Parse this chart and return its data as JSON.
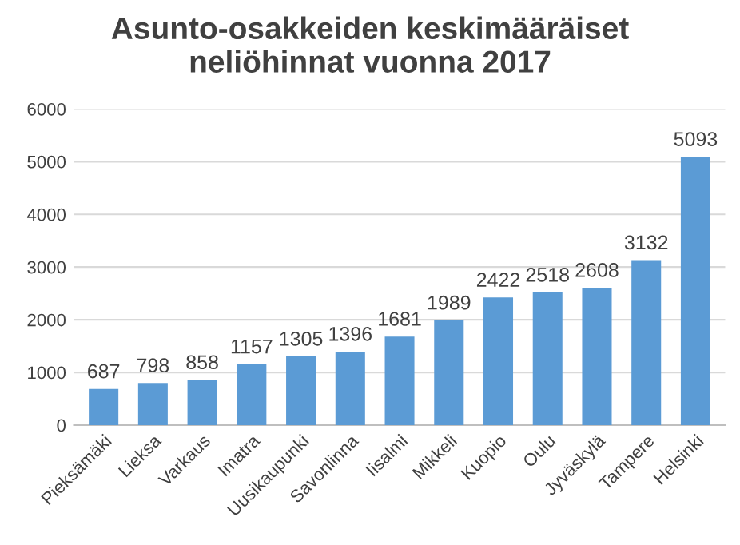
{
  "chart_data": {
    "type": "bar",
    "title": "Asunto-osakkeiden keskimääräiset\nneliöhinnat vuonna 2017",
    "categories": [
      "Pieksämäki",
      "Lieksa",
      "Varkaus",
      "Imatra",
      "Uusikaupunki",
      "Savonlinna",
      "Iisalmi",
      "Mikkeli",
      "Kuopio",
      "Oulu",
      "Jyväskylä",
      "Tampere",
      "Helsinki"
    ],
    "values": [
      687,
      798,
      858,
      1157,
      1305,
      1396,
      1681,
      1989,
      2422,
      2518,
      2608,
      3132,
      5093
    ],
    "color": "#5b9bd5",
    "ylim": [
      0,
      6000
    ],
    "yticks": [
      0,
      1000,
      2000,
      3000,
      4000,
      5000,
      6000
    ],
    "grid": "y",
    "data_labels": true,
    "legend": false
  }
}
